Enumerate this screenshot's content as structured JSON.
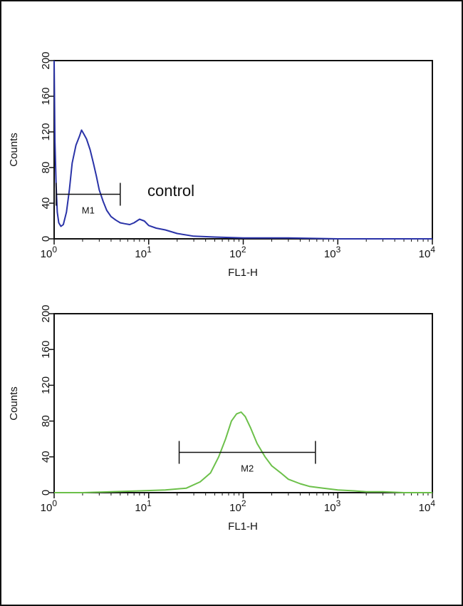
{
  "colors": {
    "control": "#2a33a8",
    "sample": "#6cc04a",
    "axis": "#111111"
  },
  "chart_data": [
    {
      "type": "line",
      "title": "",
      "xlabel": "FL1-H",
      "ylabel": "Counts",
      "xscale": "log",
      "xlim": [
        1,
        10000
      ],
      "ylim": [
        0,
        200
      ],
      "x_ticks": [
        1,
        10,
        100,
        1000,
        10000
      ],
      "x_tick_labels": [
        [
          "10",
          "0"
        ],
        [
          "10",
          "1"
        ],
        [
          "10",
          "2"
        ],
        [
          "10",
          "3"
        ],
        [
          "10",
          "4"
        ]
      ],
      "y_ticks": [
        0,
        40,
        80,
        120,
        160,
        200
      ],
      "y_tick_labels": [
        "0",
        "40",
        "80",
        "120",
        "160",
        "200"
      ],
      "annotation": "control",
      "gate": {
        "label": "M1",
        "x_range": [
          1.05,
          5
        ],
        "y": 50
      },
      "series": [
        {
          "color_key": "control",
          "x": [
            1.0,
            1.02,
            1.05,
            1.08,
            1.12,
            1.18,
            1.25,
            1.35,
            1.45,
            1.55,
            1.7,
            1.85,
            1.95,
            2.05,
            2.2,
            2.4,
            2.6,
            2.8,
            3.0,
            3.3,
            3.6,
            4.0,
            4.5,
            5.0,
            5.6,
            6.3,
            7.0,
            8.0,
            9.0,
            10.0,
            12.0,
            15.0,
            20.0,
            30.0,
            50.0,
            100.0,
            300.0,
            1000.0,
            3000.0,
            10000.0
          ],
          "y": [
            200,
            110,
            60,
            30,
            18,
            14,
            16,
            30,
            55,
            85,
            105,
            115,
            122,
            118,
            112,
            100,
            85,
            70,
            55,
            42,
            32,
            25,
            21,
            18,
            17,
            16,
            18,
            22,
            20,
            15,
            12,
            10,
            6,
            3,
            2,
            1,
            1,
            0,
            0,
            0
          ]
        }
      ]
    },
    {
      "type": "line",
      "title": "",
      "xlabel": "FL1-H",
      "ylabel": "Counts",
      "xscale": "log",
      "xlim": [
        1,
        10000
      ],
      "ylim": [
        0,
        200
      ],
      "x_ticks": [
        1,
        10,
        100,
        1000,
        10000
      ],
      "x_tick_labels": [
        [
          "10",
          "0"
        ],
        [
          "10",
          "1"
        ],
        [
          "10",
          "2"
        ],
        [
          "10",
          "3"
        ],
        [
          "10",
          "4"
        ]
      ],
      "y_ticks": [
        0,
        40,
        80,
        120,
        160,
        200
      ],
      "y_tick_labels": [
        "0",
        "40",
        "80",
        "120",
        "160",
        "200"
      ],
      "annotation": "",
      "gate": {
        "label": "M2",
        "x_range": [
          21,
          580
        ],
        "y": 45
      },
      "series": [
        {
          "color_key": "sample",
          "x": [
            1.0,
            2.0,
            4.0,
            8.0,
            15.0,
            25.0,
            35.0,
            45.0,
            55.0,
            65.0,
            75.0,
            85.0,
            95.0,
            105.0,
            120.0,
            140.0,
            170.0,
            200.0,
            250.0,
            300.0,
            400.0,
            500.0,
            700.0,
            1000.0,
            1500.0,
            2000.0,
            3000.0,
            5000.0,
            10000.0
          ],
          "y": [
            0,
            0,
            1,
            2,
            3,
            5,
            12,
            22,
            40,
            60,
            80,
            88,
            90,
            85,
            72,
            55,
            40,
            30,
            22,
            15,
            10,
            7,
            5,
            3,
            2,
            1,
            1,
            0,
            0
          ]
        }
      ]
    }
  ]
}
